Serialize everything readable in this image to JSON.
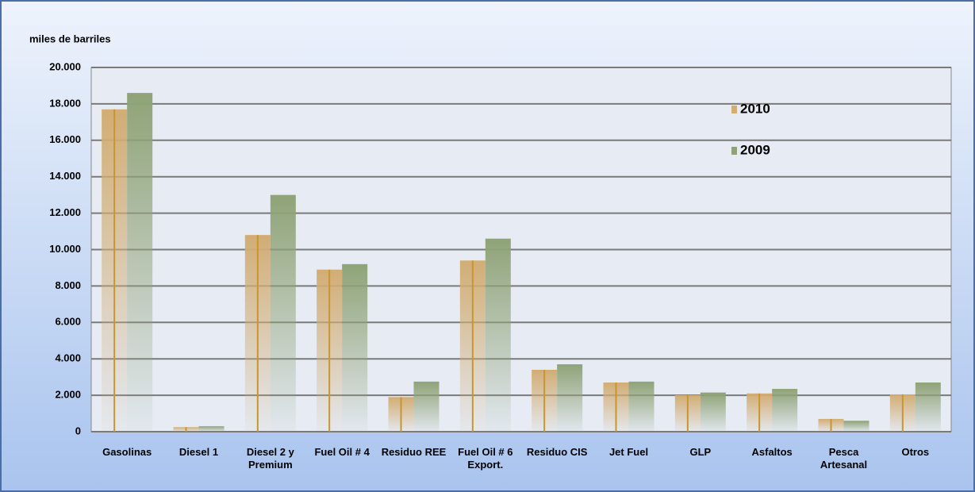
{
  "chart_data": {
    "type": "bar",
    "y_label": "miles de barriles",
    "categories": [
      "Gasolinas",
      "Diesel 1",
      "Diesel 2 y Premium",
      "Fuel Oil # 4",
      "Residuo REE",
      "Fuel Oil # 6 Export.",
      "Residuo CIS",
      "Jet Fuel",
      "GLP",
      "Asfaltos",
      "Pesca Artesanal",
      "Otros"
    ],
    "series": [
      {
        "name": "2010",
        "color": "#d2ad74",
        "values": [
          17700,
          250,
          10800,
          8900,
          1900,
          9400,
          3400,
          2700,
          2000,
          2100,
          700,
          2050
        ]
      },
      {
        "name": "2009",
        "color": "#8fa377",
        "values": [
          18600,
          300,
          13000,
          9200,
          2750,
          10600,
          3700,
          2750,
          2150,
          2350,
          600,
          2700
        ]
      }
    ],
    "ylim": [
      0,
      20000
    ],
    "yticks": [
      0,
      {
        "value": 2000,
        "label": "2.000"
      },
      {
        "value": 4000,
        "label": "4.000"
      },
      {
        "value": 6000,
        "label": "6.000"
      },
      {
        "value": 8000,
        "label": "8.000"
      },
      {
        "value": 10000,
        "label": "10.000"
      },
      {
        "value": 12000,
        "label": "12.000"
      },
      {
        "value": 14000,
        "label": "14.000"
      },
      {
        "value": 16000,
        "label": "16.000"
      },
      {
        "value": 18000,
        "label": "18.000"
      },
      {
        "value": 20000,
        "label": "20.000"
      }
    ],
    "grid": true,
    "legend": "upper right"
  }
}
